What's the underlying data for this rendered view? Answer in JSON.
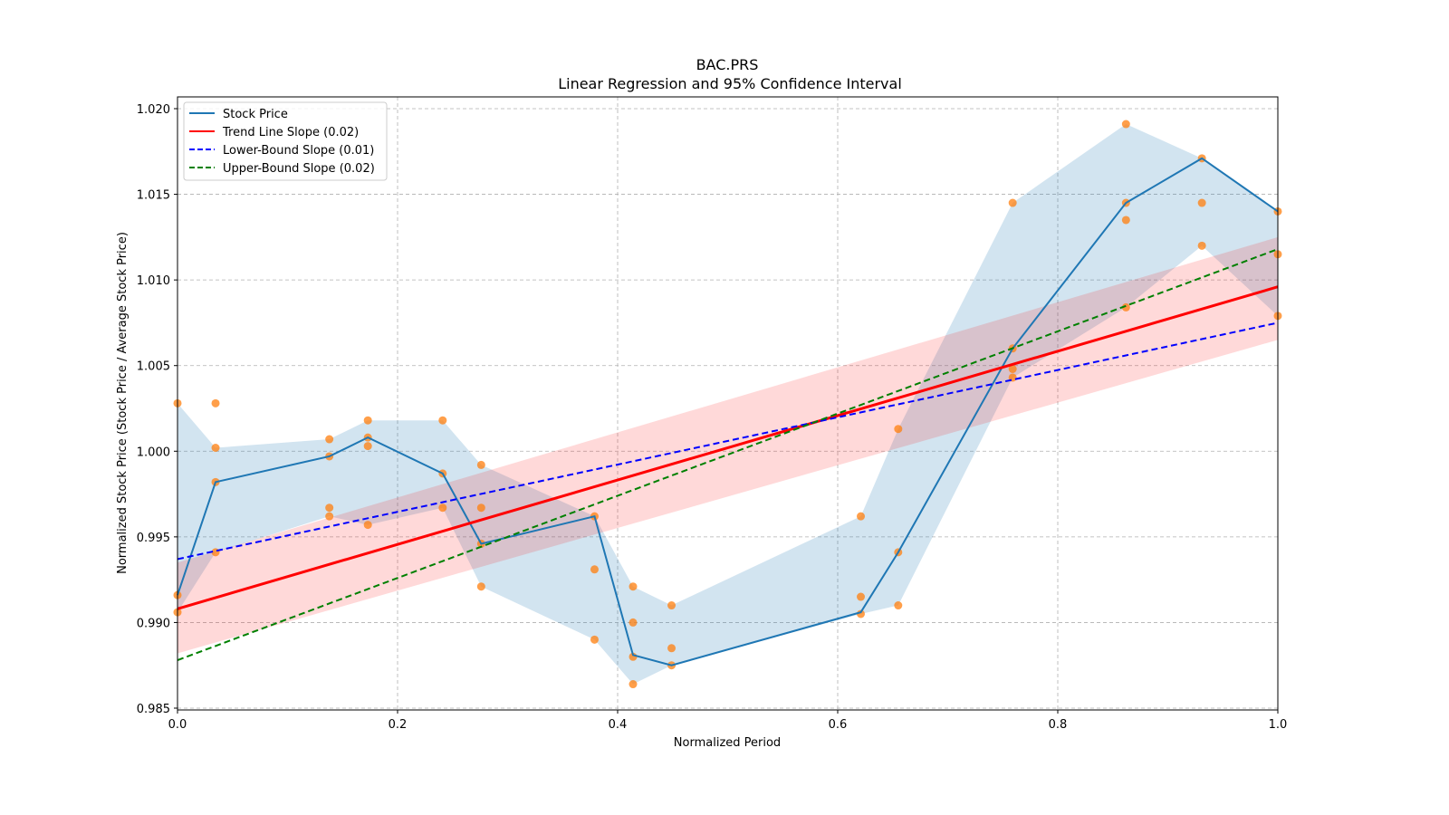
{
  "chart_data": {
    "type": "line",
    "title": "BAC.PRS",
    "subtitle": "Linear Regression and 95% Confidence Interval",
    "xlabel": "Normalized Period",
    "ylabel": "Normalized Stock Price (Stock Price / Average Stock Price)",
    "xlim": [
      0,
      1
    ],
    "ylim": [
      0.985,
      1.0207
    ],
    "xticks": [
      "0.0",
      "0.2",
      "0.4",
      "0.6",
      "0.8",
      "1.0"
    ],
    "xtick_values": [
      0,
      0.2,
      0.4,
      0.6,
      0.8,
      1.0
    ],
    "yticks": [
      "0.985",
      "0.990",
      "0.995",
      "1.000",
      "1.005",
      "1.010",
      "1.015",
      "1.020"
    ],
    "ytick_values": [
      0.985,
      0.99,
      0.995,
      1.0,
      1.005,
      1.01,
      1.015,
      1.02
    ],
    "grid": true,
    "legend_position": "top-left",
    "legend": [
      "Stock Price",
      "Trend Line Slope (0.02)",
      "Lower-Bound Slope (0.01)",
      "Upper-Bound Slope (0.02)"
    ],
    "stock_price": {
      "x": [
        0,
        0.0346,
        0.138,
        0.173,
        0.241,
        0.276,
        0.379,
        0.414,
        0.449,
        0.621,
        0.655,
        0.759,
        0.862,
        0.931,
        1.0
      ],
      "y": [
        0.9916,
        0.9982,
        0.9997,
        1.0008,
        0.9987,
        0.9946,
        0.9962,
        0.9881,
        0.9875,
        0.9906,
        0.9941,
        1.006,
        1.0145,
        1.0171,
        1.014
      ],
      "band_low": [
        0.9906,
        0.9941,
        0.9962,
        0.9957,
        0.9967,
        0.9921,
        0.989,
        0.9864,
        0.9875,
        0.9905,
        0.991,
        1.0043,
        1.0084,
        1.012,
        1.0079
      ],
      "band_high": [
        1.0028,
        1.0002,
        1.0007,
        1.0018,
        1.0018,
        0.9992,
        0.9962,
        0.9921,
        0.991,
        0.9962,
        1.0013,
        1.0145,
        1.0191,
        1.0171,
        1.014
      ]
    },
    "scatter": [
      [
        0,
        0.9916
      ],
      [
        0,
        0.9906
      ],
      [
        0,
        1.0028
      ],
      [
        0.0346,
        1.0028
      ],
      [
        0.0346,
        1.0002
      ],
      [
        0.0346,
        0.9982
      ],
      [
        0.0346,
        0.9941
      ],
      [
        0.138,
        1.0007
      ],
      [
        0.138,
        0.9997
      ],
      [
        0.138,
        0.9967
      ],
      [
        0.138,
        0.9962
      ],
      [
        0.173,
        1.0018
      ],
      [
        0.173,
        1.0008
      ],
      [
        0.173,
        1.0003
      ],
      [
        0.173,
        0.9957
      ],
      [
        0.241,
        1.0018
      ],
      [
        0.241,
        0.9987
      ],
      [
        0.241,
        0.9967
      ],
      [
        0.276,
        0.9992
      ],
      [
        0.276,
        0.9967
      ],
      [
        0.276,
        0.9946
      ],
      [
        0.276,
        0.9921
      ],
      [
        0.379,
        0.9962
      ],
      [
        0.379,
        0.9931
      ],
      [
        0.379,
        0.989
      ],
      [
        0.414,
        0.9921
      ],
      [
        0.414,
        0.99
      ],
      [
        0.414,
        0.988
      ],
      [
        0.414,
        0.9864
      ],
      [
        0.449,
        0.991
      ],
      [
        0.449,
        0.9885
      ],
      [
        0.449,
        0.9875
      ],
      [
        0.621,
        0.9962
      ],
      [
        0.621,
        0.9915
      ],
      [
        0.621,
        0.9905
      ],
      [
        0.655,
        1.0013
      ],
      [
        0.655,
        0.9941
      ],
      [
        0.655,
        0.991
      ],
      [
        0.759,
        1.0145
      ],
      [
        0.759,
        1.006
      ],
      [
        0.759,
        1.0048
      ],
      [
        0.759,
        1.0043
      ],
      [
        0.862,
        1.0191
      ],
      [
        0.862,
        1.0145
      ],
      [
        0.862,
        1.0135
      ],
      [
        0.862,
        1.0084
      ],
      [
        0.931,
        1.0171
      ],
      [
        0.931,
        1.0145
      ],
      [
        0.931,
        1.012
      ],
      [
        1.0,
        1.014
      ],
      [
        1.0,
        1.0115
      ],
      [
        1.0,
        1.0079
      ]
    ],
    "trend_line": {
      "x": [
        0,
        1
      ],
      "y": [
        0.9908,
        1.0096
      ],
      "ci_low": [
        0.9882,
        1.0065
      ],
      "ci_high": [
        0.9935,
        1.0125
      ]
    },
    "lower_bound_line": {
      "x": [
        0,
        1
      ],
      "y": [
        0.9937,
        1.0075
      ]
    },
    "upper_bound_line": {
      "x": [
        0,
        1
      ],
      "y": [
        0.9878,
        1.0118
      ]
    },
    "colors": {
      "stock": "#1f77b4",
      "band": "#1f77b4",
      "scatter": "#ff7f0e",
      "trend": "#ff0000",
      "lower": "#0000ff",
      "upper": "#008000"
    }
  }
}
